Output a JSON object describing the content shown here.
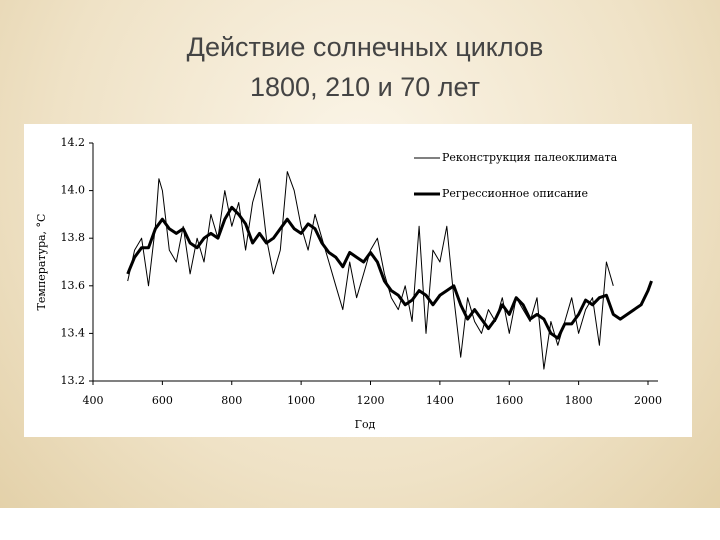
{
  "chart_data": {
    "type": "line",
    "title": "Действие солнечных циклов",
    "subtitle": "1800, 210 и 70 лет",
    "x_label": "Год",
    "y_label": "Температура, °С",
    "xlim": [
      400,
      2000
    ],
    "xticks": [
      400,
      600,
      800,
      1000,
      1200,
      1400,
      1600,
      1800,
      2000
    ],
    "ylim": [
      13.2,
      14.2
    ],
    "yticks": [
      {
        "value": 14.2,
        "label": "14.2"
      },
      {
        "value": 14,
        "label": "14.0"
      },
      13.8,
      13.6,
      13.4,
      13.2
    ],
    "series": [
      {
        "name": "Реконструкция палеоклимата",
        "color": "#000000",
        "width": 1,
        "x": [
          500,
          520,
          540,
          560,
          580,
          590,
          600,
          620,
          640,
          660,
          680,
          700,
          720,
          740,
          760,
          780,
          800,
          820,
          840,
          860,
          880,
          900,
          920,
          940,
          960,
          980,
          1000,
          1020,
          1040,
          1060,
          1080,
          1100,
          1120,
          1140,
          1160,
          1180,
          1200,
          1220,
          1240,
          1260,
          1280,
          1300,
          1320,
          1340,
          1360,
          1380,
          1400,
          1420,
          1440,
          1460,
          1480,
          1500,
          1520,
          1540,
          1560,
          1580,
          1600,
          1620,
          1640,
          1660,
          1680,
          1700,
          1720,
          1740,
          1760,
          1780,
          1800,
          1820,
          1840,
          1860,
          1880,
          1900
        ],
        "values": [
          13.62,
          13.75,
          13.8,
          13.6,
          13.85,
          14.05,
          14.0,
          13.75,
          13.7,
          13.85,
          13.65,
          13.8,
          13.7,
          13.9,
          13.8,
          14.0,
          13.85,
          13.95,
          13.75,
          13.95,
          14.05,
          13.8,
          13.65,
          13.75,
          14.08,
          14.0,
          13.85,
          13.75,
          13.9,
          13.8,
          13.7,
          13.6,
          13.5,
          13.7,
          13.55,
          13.65,
          13.75,
          13.8,
          13.65,
          13.55,
          13.5,
          13.6,
          13.45,
          13.85,
          13.4,
          13.75,
          13.7,
          13.85,
          13.55,
          13.3,
          13.55,
          13.45,
          13.4,
          13.5,
          13.45,
          13.55,
          13.4,
          13.55,
          13.5,
          13.45,
          13.55,
          13.25,
          13.45,
          13.35,
          13.45,
          13.55,
          13.4,
          13.5,
          13.55,
          13.35,
          13.7,
          13.6
        ]
      },
      {
        "name": "Регрессионное описание",
        "color": "#000000",
        "width": 3,
        "x": [
          500,
          520,
          540,
          560,
          580,
          600,
          620,
          640,
          660,
          680,
          700,
          720,
          740,
          760,
          780,
          800,
          820,
          840,
          860,
          880,
          900,
          920,
          940,
          960,
          980,
          1000,
          1020,
          1040,
          1060,
          1080,
          1100,
          1120,
          1140,
          1160,
          1180,
          1200,
          1220,
          1240,
          1260,
          1280,
          1300,
          1320,
          1340,
          1360,
          1380,
          1400,
          1420,
          1440,
          1460,
          1480,
          1500,
          1520,
          1540,
          1560,
          1580,
          1600,
          1620,
          1640,
          1660,
          1680,
          1700,
          1720,
          1740,
          1760,
          1780,
          1800,
          1820,
          1840,
          1860,
          1880,
          1900,
          1920,
          1940,
          1960,
          1980,
          2000,
          2010
        ],
        "values": [
          13.65,
          13.72,
          13.76,
          13.76,
          13.84,
          13.88,
          13.84,
          13.82,
          13.84,
          13.78,
          13.76,
          13.8,
          13.82,
          13.8,
          13.88,
          13.93,
          13.9,
          13.86,
          13.78,
          13.82,
          13.78,
          13.8,
          13.84,
          13.88,
          13.84,
          13.82,
          13.86,
          13.84,
          13.78,
          13.74,
          13.72,
          13.68,
          13.74,
          13.72,
          13.7,
          13.74,
          13.7,
          13.62,
          13.58,
          13.56,
          13.52,
          13.54,
          13.58,
          13.56,
          13.52,
          13.56,
          13.58,
          13.6,
          13.52,
          13.46,
          13.5,
          13.46,
          13.42,
          13.46,
          13.52,
          13.48,
          13.55,
          13.52,
          13.46,
          13.48,
          13.46,
          13.4,
          13.38,
          13.44,
          13.44,
          13.48,
          13.54,
          13.52,
          13.55,
          13.56,
          13.48,
          13.46,
          13.48,
          13.5,
          13.52,
          13.58,
          13.62
        ]
      }
    ]
  }
}
